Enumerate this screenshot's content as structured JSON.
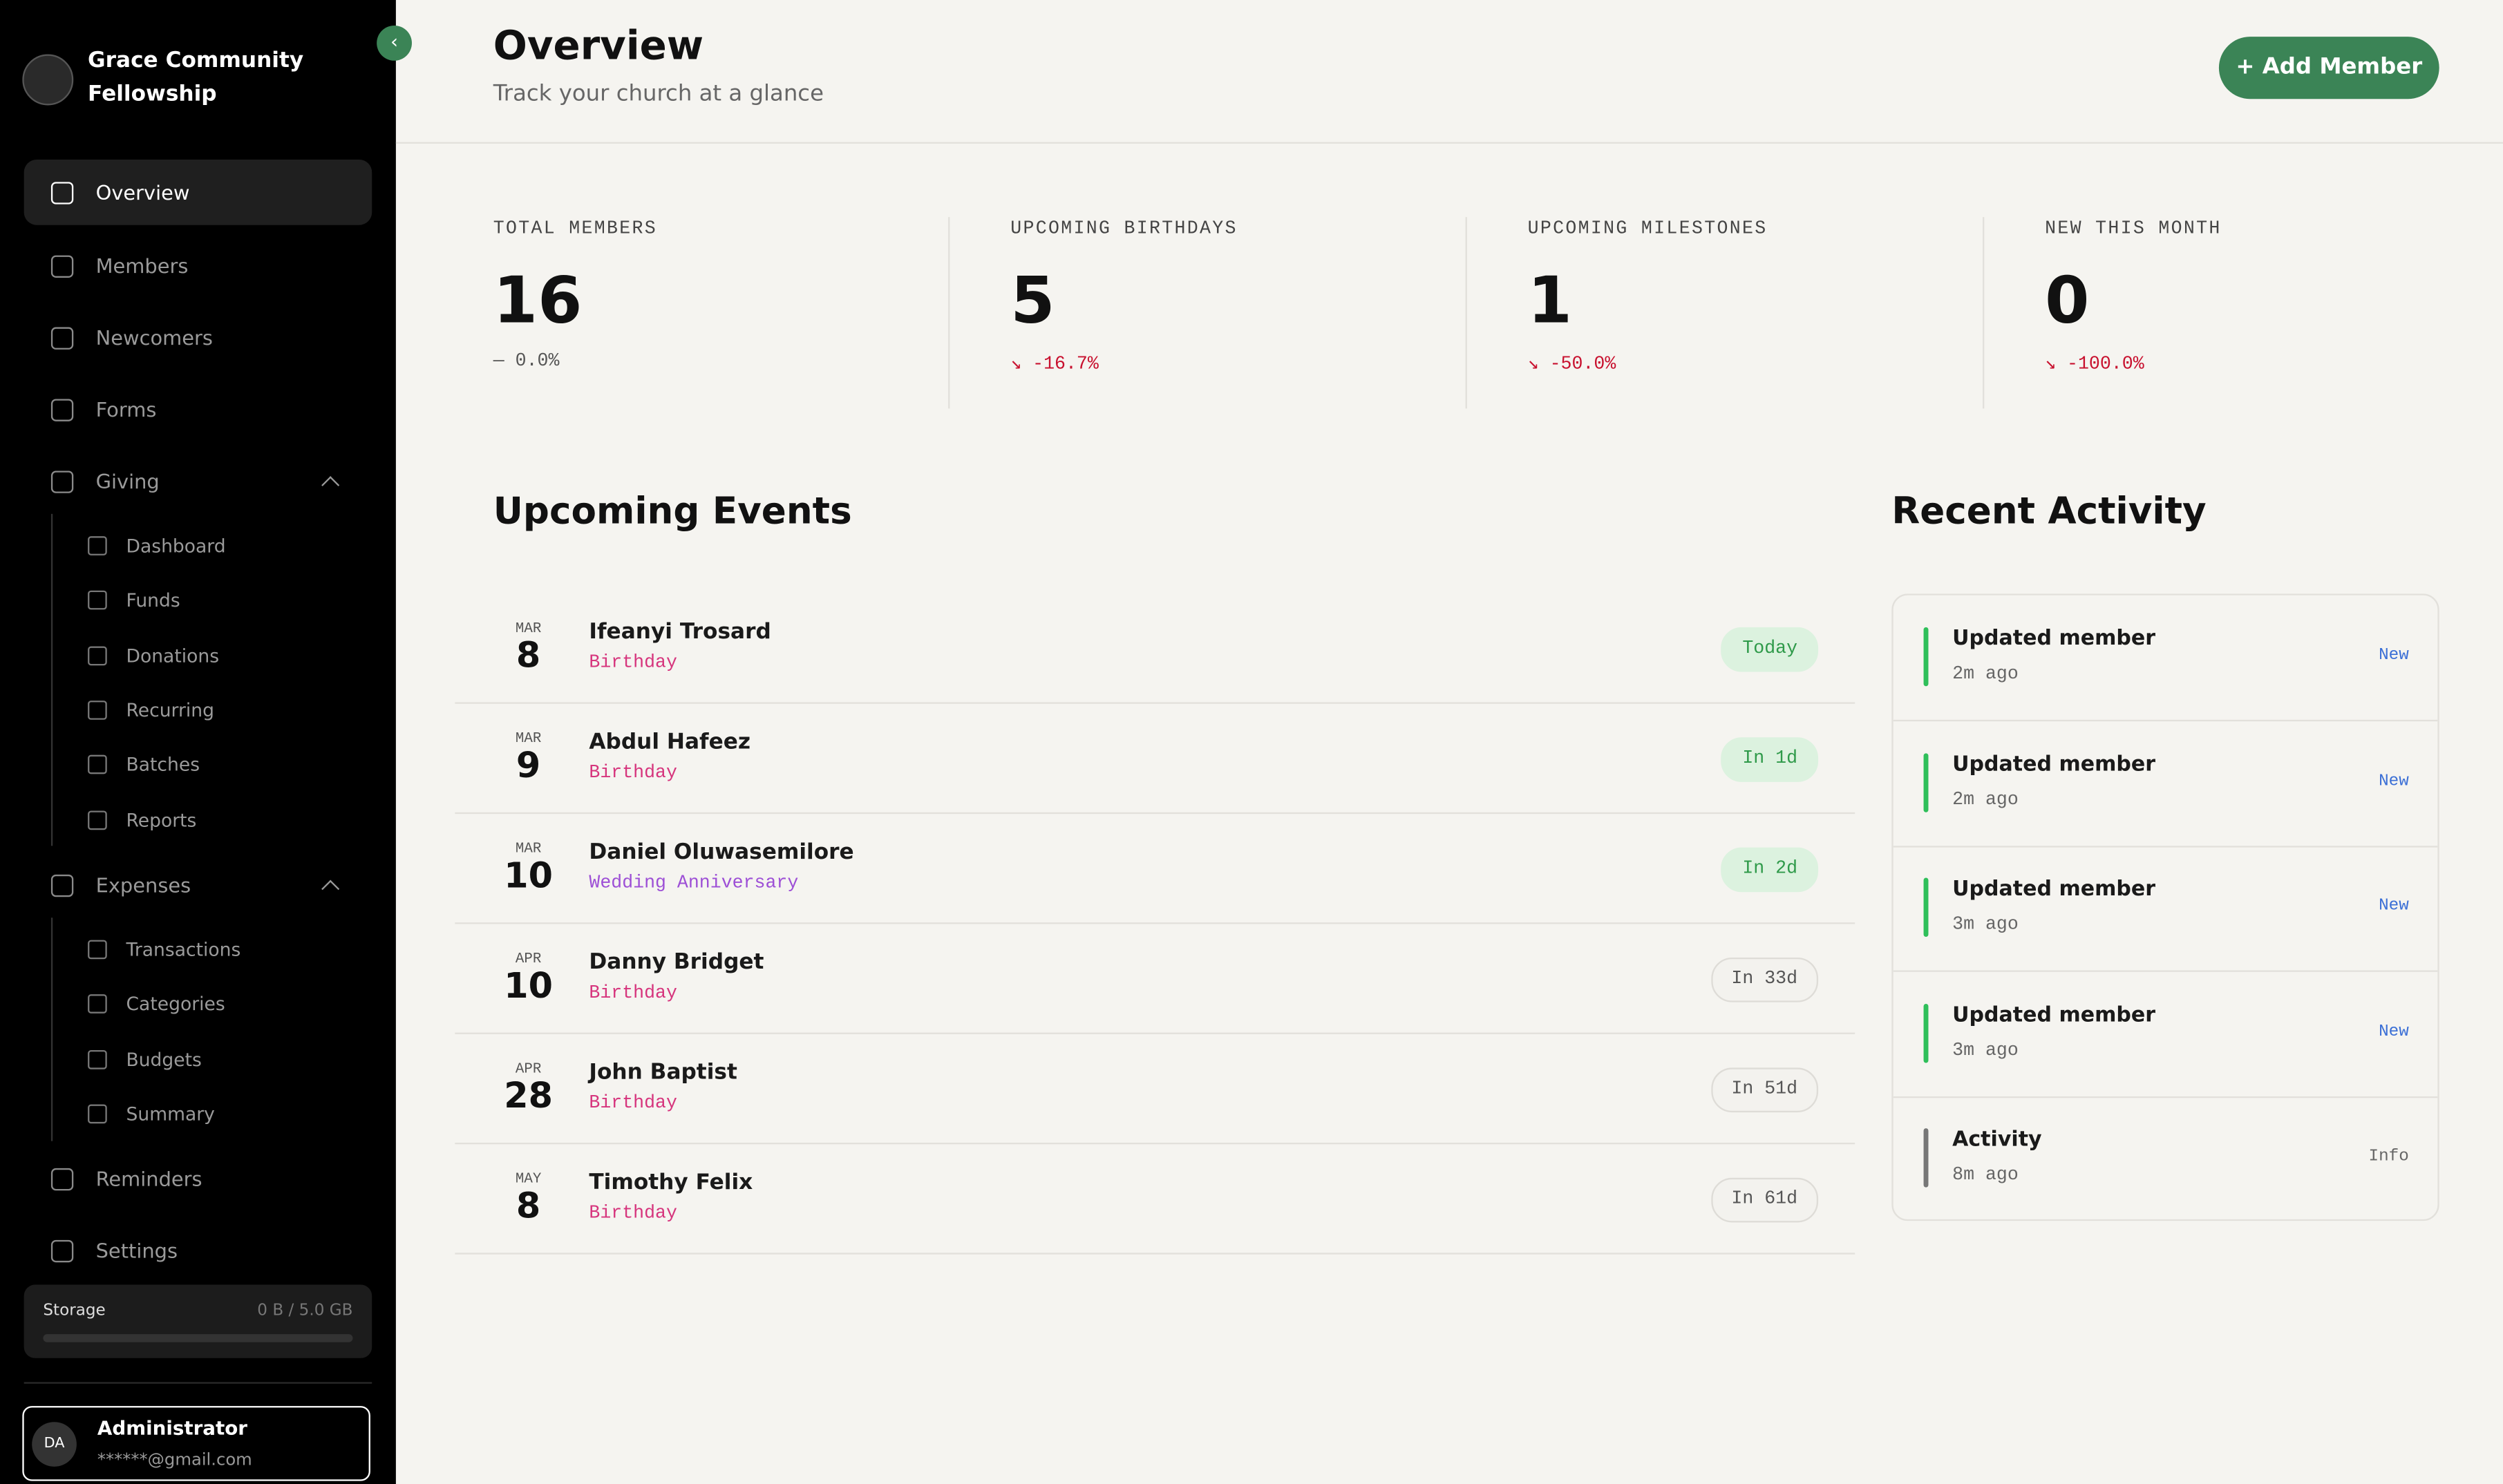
{
  "sidebar": {
    "org_name": "Grace Community Fellowship",
    "nav": [
      "Overview",
      "Members",
      "Newcomers",
      "Forms"
    ],
    "giving": {
      "label": "Giving",
      "items": [
        "Dashboard",
        "Funds",
        "Donations",
        "Recurring",
        "Batches",
        "Reports"
      ]
    },
    "expenses": {
      "label": "Expenses",
      "items": [
        "Transactions",
        "Categories",
        "Budgets",
        "Summary"
      ]
    },
    "bottom_nav": [
      "Reminders",
      "Settings"
    ],
    "storage": {
      "label": "Storage",
      "value": "0 B / 5.0 GB"
    },
    "user": {
      "initials": "DA",
      "name": "Administrator",
      "email": "******@gmail.com"
    }
  },
  "header": {
    "title": "Overview",
    "subtitle": "Track your church at a glance",
    "button": "+ Add Member"
  },
  "stats": [
    {
      "label": "TOTAL MEMBERS",
      "value": "16",
      "change": "— 0.0%"
    },
    {
      "label": "UPCOMING BIRTHDAYS",
      "value": "5",
      "change": "↘ -16.7%"
    },
    {
      "label": "UPCOMING MILESTONES",
      "value": "1",
      "change": "↘ -50.0%"
    },
    {
      "label": "NEW THIS MONTH",
      "value": "0",
      "change": "↘ -100.0%"
    }
  ],
  "events": {
    "title": "Upcoming Events",
    "rows": [
      {
        "month": "MAR",
        "day": "8",
        "name": "Ifeanyi Trosard",
        "type": "Birthday",
        "badge": "Today"
      },
      {
        "month": "MAR",
        "day": "9",
        "name": "Abdul Hafeez",
        "type": "Birthday",
        "badge": "In 1d"
      },
      {
        "month": "MAR",
        "day": "10",
        "name": "Daniel Oluwasemilore",
        "type": "Wedding Anniversary",
        "badge": "In 2d"
      },
      {
        "month": "APR",
        "day": "10",
        "name": "Danny Bridget",
        "type": "Birthday",
        "badge": "In 33d"
      },
      {
        "month": "APR",
        "day": "28",
        "name": "John Baptist",
        "type": "Birthday",
        "badge": "In 51d"
      },
      {
        "month": "MAY",
        "day": "8",
        "name": "Timothy Felix",
        "type": "Birthday",
        "badge": "In 61d"
      }
    ]
  },
  "activity": {
    "title": "Recent Activity",
    "items": [
      {
        "title": "Updated member",
        "time": "2m ago",
        "tag": "New"
      },
      {
        "title": "Updated member",
        "time": "2m ago",
        "tag": "New"
      },
      {
        "title": "Updated member",
        "time": "3m ago",
        "tag": "New"
      },
      {
        "title": "Updated member",
        "time": "3m ago",
        "tag": "New"
      },
      {
        "title": "Activity",
        "time": "8m ago",
        "tag": "Info"
      }
    ]
  }
}
